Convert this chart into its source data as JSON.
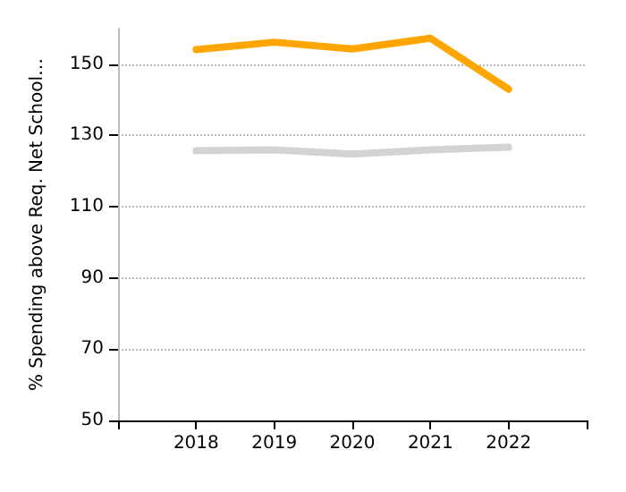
{
  "chart_data": {
    "type": "line",
    "ylabel": "% Spending above Req. Net School…",
    "x": [
      2018,
      2019,
      2020,
      2021,
      2022
    ],
    "series": [
      {
        "color": "#ffa500",
        "values": [
          154.1,
          156.2,
          154.3,
          157.3,
          143
        ]
      },
      {
        "color": "#d3d3d3",
        "values": [
          125.7,
          126,
          124.8,
          126,
          126.7
        ]
      }
    ],
    "xlim": [
      2017,
      2023
    ],
    "xticks": [
      {
        "value": 2017,
        "label": null
      },
      2018,
      2019,
      2020,
      2021,
      2022,
      {
        "value": 2023,
        "label": null
      }
    ],
    "ylim": [
      50,
      160
    ],
    "yticks": [
      50,
      70,
      90,
      110,
      130,
      150
    ],
    "grid": "y",
    "marker": "none",
    "line_style": "solid"
  }
}
